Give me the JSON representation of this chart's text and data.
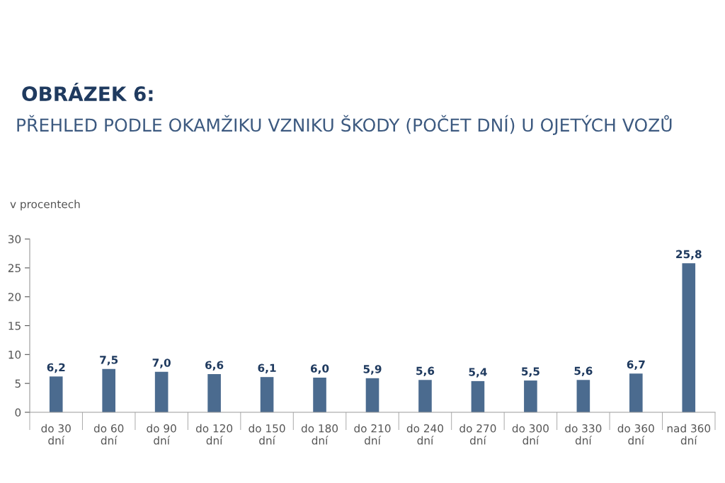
{
  "chart_data": {
    "type": "bar",
    "title": "OBRÁZEK 6:",
    "subtitle": "PŘEHLED PODLE OKAMŽIKU VZNIKU ŠKODY (POČET DNÍ) U OJETÝCH VOZŮ",
    "ylabel": "v procentech",
    "categories": [
      "do 30\ndní",
      "do 60\ndní",
      "do 90\ndní",
      "do 120\ndní",
      "do 150\ndní",
      "do 180\ndní",
      "do 210\ndní",
      "do 240\ndní",
      "do 270\ndní",
      "do 300\ndní",
      "do 330\ndní",
      "do 360\ndní",
      "nad 360\ndní"
    ],
    "values": [
      6.2,
      7.5,
      7.0,
      6.6,
      6.1,
      6.0,
      5.9,
      5.6,
      5.4,
      5.5,
      5.6,
      6.7,
      25.8
    ],
    "value_labels": [
      "6,2",
      "7,5",
      "7,0",
      "6,6",
      "6,1",
      "6,0",
      "5,9",
      "5,6",
      "5,4",
      "5,5",
      "5,6",
      "6,7",
      "25,8"
    ],
    "color": "#4b6b8f",
    "ylim": [
      0,
      30
    ],
    "yticks": [
      0,
      5,
      10,
      15,
      20,
      25,
      30
    ],
    "grid": false,
    "legend": false
  }
}
